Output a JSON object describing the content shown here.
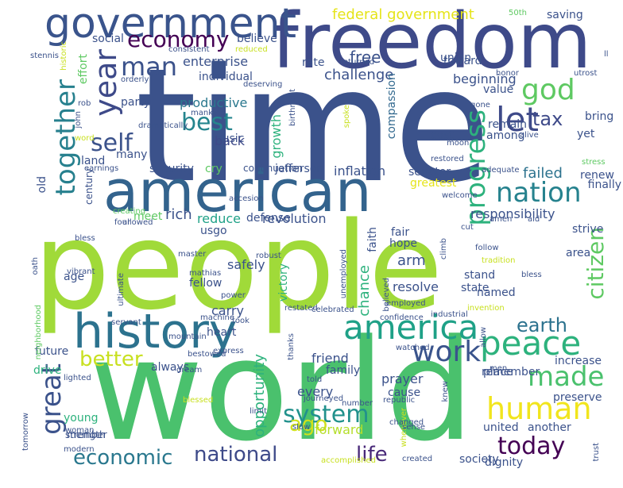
{
  "colors": {
    "background": "#ffffff",
    "palette": [
      "#440154",
      "#3b528b",
      "#21918c",
      "#5ec962",
      "#fde725"
    ]
  },
  "words": [
    {
      "text": "people",
      "color": "#a0da39"
    },
    {
      "text": "time",
      "color": "#3b528b"
    },
    {
      "text": "world",
      "color": "#4ac16d"
    },
    {
      "text": "freedom",
      "color": "#3e4a89"
    },
    {
      "text": "american",
      "color": "#33638d"
    },
    {
      "text": "history",
      "color": "#2c728e"
    },
    {
      "text": "government",
      "color": "#3a548c"
    },
    {
      "text": "america",
      "color": "#1fa187"
    },
    {
      "text": "peace",
      "color": "#2db27d"
    },
    {
      "text": "human",
      "color": "#f1e51d"
    },
    {
      "text": "today",
      "color": "#440154"
    },
    {
      "text": "nation",
      "color": "#26828e"
    },
    {
      "text": "progress",
      "color": "#2db27d"
    },
    {
      "text": "together",
      "color": "#27808e"
    },
    {
      "text": "work",
      "color": "#3a548c"
    },
    {
      "text": "made",
      "color": "#4ac16d"
    },
    {
      "text": "great",
      "color": "#3b528b"
    },
    {
      "text": "economy",
      "color": "#440154"
    },
    {
      "text": "god",
      "color": "#5ec962"
    },
    {
      "text": "let",
      "color": "#3e4a89"
    },
    {
      "text": "year",
      "color": "#3e4a89"
    },
    {
      "text": "man",
      "color": "#3b528b"
    },
    {
      "text": "best",
      "color": "#25858e"
    },
    {
      "text": "self",
      "color": "#3b528b"
    },
    {
      "text": "tax",
      "color": "#3e4a89"
    },
    {
      "text": "system",
      "color": "#21918c"
    },
    {
      "text": "economic",
      "color": "#2a788e"
    },
    {
      "text": "national",
      "color": "#3e4a89"
    },
    {
      "text": "life",
      "color": "#482878"
    },
    {
      "text": "citizen",
      "color": "#5ec962"
    },
    {
      "text": "earth",
      "color": "#2c728e"
    },
    {
      "text": "better",
      "color": "#c8e020"
    },
    {
      "text": "ago",
      "color": "#d0e11c"
    },
    {
      "text": "federal government",
      "color": "#e5e419"
    },
    {
      "text": "free",
      "color": "#3b528b"
    },
    {
      "text": "enterprise",
      "color": "#3b528b"
    },
    {
      "text": "individual",
      "color": "#3b528b"
    },
    {
      "text": "challenge",
      "color": "#3b528b"
    },
    {
      "text": "beginning",
      "color": "#3b528b"
    },
    {
      "text": "productive",
      "color": "#2a788e"
    },
    {
      "text": "compassion",
      "color": "#31688e"
    },
    {
      "text": "growth",
      "color": "#2db27d"
    },
    {
      "text": "music",
      "color": "#3b528b"
    },
    {
      "text": "back",
      "color": "#3e4a89"
    },
    {
      "text": "security",
      "color": "#3b528b"
    },
    {
      "text": "inflation",
      "color": "#3b528b"
    },
    {
      "text": "jefferson",
      "color": "#3b528b"
    },
    {
      "text": "senator",
      "color": "#3b528b"
    },
    {
      "text": "greatest",
      "color": "#e5e419"
    },
    {
      "text": "failed",
      "color": "#2c728e"
    },
    {
      "text": "responsibility",
      "color": "#3b528b"
    },
    {
      "text": "revolution",
      "color": "#3b528b"
    },
    {
      "text": "defense",
      "color": "#3b528b"
    },
    {
      "text": "reduce",
      "color": "#1fa187"
    },
    {
      "text": "rich",
      "color": "#3b528b"
    },
    {
      "text": "usgo",
      "color": "#3b528b"
    },
    {
      "text": "fair",
      "color": "#3b528b"
    },
    {
      "text": "hope",
      "color": "#3b528b"
    },
    {
      "text": "faith",
      "color": "#3b528b"
    },
    {
      "text": "arm",
      "color": "#3b528b"
    },
    {
      "text": "resolve",
      "color": "#3b528b"
    },
    {
      "text": "chance",
      "color": "#2db27d"
    },
    {
      "text": "stand",
      "color": "#3b528b"
    },
    {
      "text": "state",
      "color": "#3b528b"
    },
    {
      "text": "named",
      "color": "#3b528b"
    },
    {
      "text": "safely",
      "color": "#3b528b"
    },
    {
      "text": "fellow",
      "color": "#3b528b"
    },
    {
      "text": "carry",
      "color": "#3b528b"
    },
    {
      "text": "victory",
      "color": "#2db27d"
    },
    {
      "text": "heart",
      "color": "#3b528b"
    },
    {
      "text": "friend",
      "color": "#3b528b"
    },
    {
      "text": "family",
      "color": "#3b528b"
    },
    {
      "text": "prayer",
      "color": "#3b528b"
    },
    {
      "text": "cause",
      "color": "#3b528b"
    },
    {
      "text": "every",
      "color": "#3b528b"
    },
    {
      "text": "forward",
      "color": "#b5de2b"
    },
    {
      "text": "society",
      "color": "#3b528b"
    },
    {
      "text": "opportunity",
      "color": "#2db27d"
    },
    {
      "text": "always",
      "color": "#3b528b"
    },
    {
      "text": "drive",
      "color": "#2db27d"
    },
    {
      "text": "young",
      "color": "#2db27d"
    },
    {
      "text": "strength",
      "color": "#3b528b"
    },
    {
      "text": "member",
      "color": "#3b528b"
    },
    {
      "text": "age",
      "color": "#3b528b"
    },
    {
      "text": "old",
      "color": "#3b528b"
    },
    {
      "text": "land",
      "color": "#3b528b"
    },
    {
      "text": "many",
      "color": "#3b528b"
    },
    {
      "text": "party",
      "color": "#3b528b"
    },
    {
      "text": "social",
      "color": "#3b528b"
    },
    {
      "text": "believe",
      "color": "#3b528b"
    },
    {
      "text": "saving",
      "color": "#3b528b"
    },
    {
      "text": "rate",
      "color": "#3b528b"
    },
    {
      "text": "toward",
      "color": "#3b528b"
    },
    {
      "text": "union",
      "color": "#3b528b"
    },
    {
      "text": "value",
      "color": "#3b528b"
    },
    {
      "text": "remain",
      "color": "#3b528b"
    },
    {
      "text": "among",
      "color": "#3b528b"
    },
    {
      "text": "cost",
      "color": "#3b528b"
    },
    {
      "text": "yet",
      "color": "#3b528b"
    },
    {
      "text": "bring",
      "color": "#3b528b"
    },
    {
      "text": "renew",
      "color": "#3b528b"
    },
    {
      "text": "finally",
      "color": "#3b528b"
    },
    {
      "text": "strive",
      "color": "#3b528b"
    },
    {
      "text": "area",
      "color": "#3b528b"
    },
    {
      "text": "place",
      "color": "#3b528b"
    },
    {
      "text": "remember",
      "color": "#3b528b"
    },
    {
      "text": "preserve",
      "color": "#3b528b"
    },
    {
      "text": "increase",
      "color": "#3b528b"
    },
    {
      "text": "dignity",
      "color": "#3b528b"
    },
    {
      "text": "another",
      "color": "#3b528b"
    },
    {
      "text": "united",
      "color": "#3b528b"
    },
    {
      "text": "future",
      "color": "#3b528b"
    },
    {
      "text": "century",
      "color": "#3b528b"
    },
    {
      "text": "effort",
      "color": "#5ec962"
    },
    {
      "text": "meet",
      "color": "#5ec962"
    },
    {
      "text": "cry",
      "color": "#5ec962"
    },
    {
      "text": "continuation",
      "color": "#3b528b"
    },
    {
      "text": "consistent",
      "color": "#3b528b"
    },
    {
      "text": "reduced",
      "color": "#c8e020"
    },
    {
      "text": "returned",
      "color": "#3b528b"
    },
    {
      "text": "orderly",
      "color": "#3b528b"
    },
    {
      "text": "deserving",
      "color": "#3b528b"
    },
    {
      "text": "honor",
      "color": "#3b528b"
    },
    {
      "text": "utrost",
      "color": "#3b528b"
    },
    {
      "text": "50th",
      "color": "#5ec962"
    },
    {
      "text": "historic",
      "color": "#c8e020"
    },
    {
      "text": "stennis",
      "color": "#3b528b"
    },
    {
      "text": "mankind",
      "color": "#3b528b"
    },
    {
      "text": "birthright",
      "color": "#3b528b"
    },
    {
      "text": "spoke",
      "color": "#c8e020"
    },
    {
      "text": "gone",
      "color": "#3b528b"
    },
    {
      "text": "alive",
      "color": "#3b528b"
    },
    {
      "text": "moon",
      "color": "#3b528b"
    },
    {
      "text": "restored",
      "color": "#3b528b"
    },
    {
      "text": "adequate",
      "color": "#3b528b"
    },
    {
      "text": "word",
      "color": "#c8e020"
    },
    {
      "text": "dramatically",
      "color": "#3b528b"
    },
    {
      "text": "earnings",
      "color": "#3b528b"
    },
    {
      "text": "accesion",
      "color": "#3b528b"
    },
    {
      "text": "allowed",
      "color": "#3b528b"
    },
    {
      "text": "creating",
      "color": "#5ec962"
    },
    {
      "text": "aid",
      "color": "#3b528b"
    },
    {
      "text": "amen",
      "color": "#3b528b"
    },
    {
      "text": "welcome",
      "color": "#3b528b"
    },
    {
      "text": "cut",
      "color": "#3b528b"
    },
    {
      "text": "follow",
      "color": "#3b528b"
    },
    {
      "text": "tradition",
      "color": "#c8e020"
    },
    {
      "text": "bless",
      "color": "#3b528b"
    },
    {
      "text": "oath",
      "color": "#3b528b"
    },
    {
      "text": "vibrant",
      "color": "#3b528b"
    },
    {
      "text": "master",
      "color": "#3b528b"
    },
    {
      "text": "robust",
      "color": "#3b528b"
    },
    {
      "text": "mathias",
      "color": "#3b528b"
    },
    {
      "text": "power",
      "color": "#3b528b"
    },
    {
      "text": "ultimate",
      "color": "#3b528b"
    },
    {
      "text": "unemployed",
      "color": "#3b528b"
    },
    {
      "text": "believed",
      "color": "#3b528b"
    },
    {
      "text": "climb",
      "color": "#3b528b"
    },
    {
      "text": "servant",
      "color": "#3b528b"
    },
    {
      "text": "mountain",
      "color": "#3b528b"
    },
    {
      "text": "machine",
      "color": "#3b528b"
    },
    {
      "text": "took",
      "color": "#3b528b"
    },
    {
      "text": "restated",
      "color": "#3b528b"
    },
    {
      "text": "celebrated",
      "color": "#3b528b"
    },
    {
      "text": "confidence",
      "color": "#3b528b"
    },
    {
      "text": "industrial",
      "color": "#3b528b"
    },
    {
      "text": "invention",
      "color": "#c8e020"
    },
    {
      "text": "allow",
      "color": "#3b528b"
    },
    {
      "text": "employed",
      "color": "#3b528b"
    },
    {
      "text": "bestowed",
      "color": "#3b528b"
    },
    {
      "text": "dream",
      "color": "#3b528b"
    },
    {
      "text": "express",
      "color": "#3b528b"
    },
    {
      "text": "thanks",
      "color": "#3b528b"
    },
    {
      "text": "watched",
      "color": "#3b528b"
    },
    {
      "text": "lighted",
      "color": "#3b528b"
    },
    {
      "text": "woman",
      "color": "#3b528b"
    },
    {
      "text": "told",
      "color": "#3b528b"
    },
    {
      "text": "journeyed",
      "color": "#3b528b"
    },
    {
      "text": "republic",
      "color": "#3b528b"
    },
    {
      "text": "whenever",
      "color": "#c8e020"
    },
    {
      "text": "men",
      "color": "#3b528b"
    },
    {
      "text": "knew",
      "color": "#3b528b"
    },
    {
      "text": "blessed",
      "color": "#c8e020"
    },
    {
      "text": "number",
      "color": "#3b528b"
    },
    {
      "text": "changed",
      "color": "#3b528b"
    },
    {
      "text": "limit",
      "color": "#3b528b"
    },
    {
      "text": "slow",
      "color": "#3b528b"
    },
    {
      "text": "sense",
      "color": "#3b528b"
    },
    {
      "text": "modern",
      "color": "#3b528b"
    },
    {
      "text": "tomorrow",
      "color": "#3b528b"
    },
    {
      "text": "accomplished",
      "color": "#c8e020"
    },
    {
      "text": "created",
      "color": "#3b528b"
    },
    {
      "text": "trust",
      "color": "#3b528b"
    },
    {
      "text": "neighborhood",
      "color": "#5ec962"
    },
    {
      "text": "four",
      "color": "#3b528b"
    },
    {
      "text": "stress",
      "color": "#5ec962"
    },
    {
      "text": "ll",
      "color": "#3b528b"
    },
    {
      "text": "rob",
      "color": "#3b528b"
    },
    {
      "text": "john",
      "color": "#3b528b"
    },
    {
      "text": "bless",
      "color": "#3b528b"
    }
  ]
}
